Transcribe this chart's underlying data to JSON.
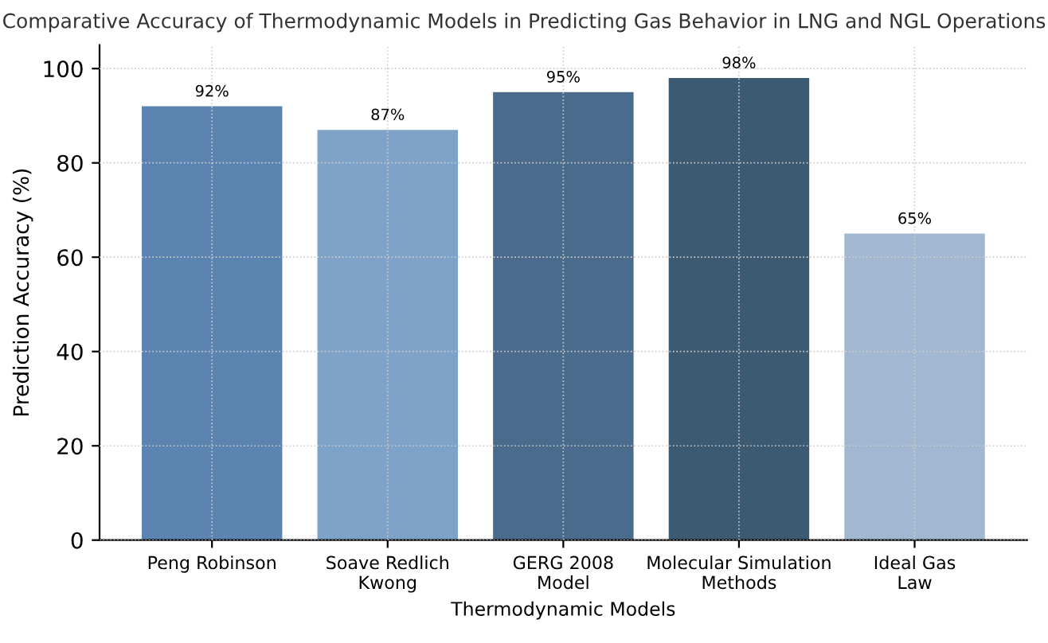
{
  "chart_data": {
    "type": "bar",
    "title": "Comparative Accuracy of Thermodynamic Models in Predicting Gas Behavior in LNG and NGL Operations",
    "xlabel": "Thermodynamic Models",
    "ylabel": "Prediction Accuracy (%)",
    "categories": [
      "Peng Robinson",
      "Soave Redlich Kwong",
      "GERG 2008 Model",
      "Molecular Simulation Methods",
      "Ideal Gas Law"
    ],
    "values": [
      92,
      87,
      95,
      98,
      65
    ],
    "colors": [
      "#5b84b1",
      "#7fa3c8",
      "#4a6b8c",
      "#3d5a73",
      "#a2b8d2"
    ],
    "value_labels": [
      "92%",
      "87%",
      "95%",
      "98%",
      "65%"
    ],
    "ylim": [
      0,
      105
    ],
    "yticks": [
      0,
      20,
      40,
      60,
      80,
      100
    ],
    "grid": true,
    "line_style": "dotted"
  }
}
